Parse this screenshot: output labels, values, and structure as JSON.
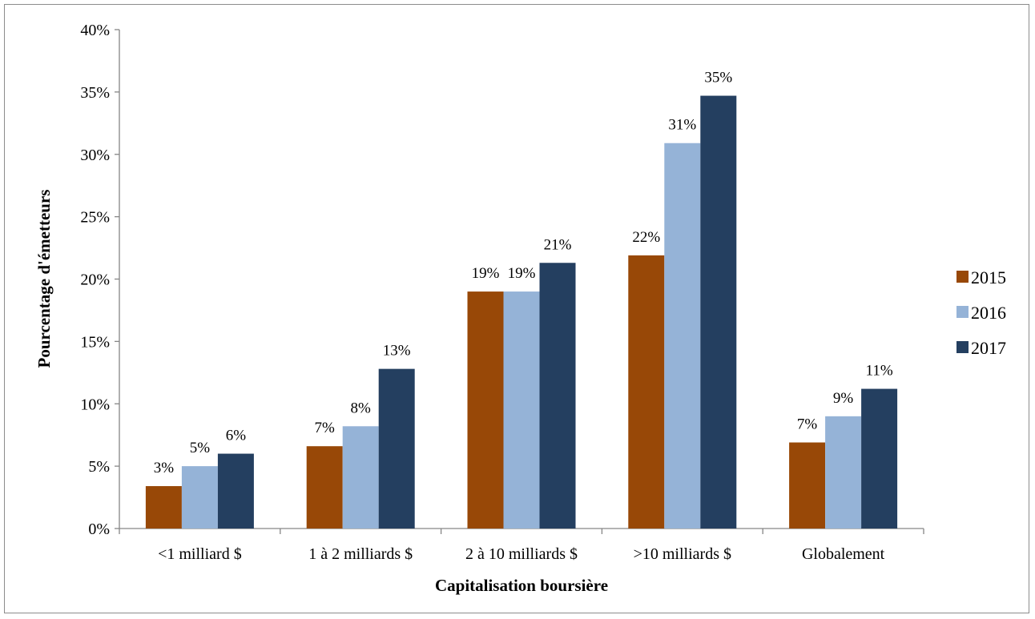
{
  "chart_data": {
    "type": "bar",
    "title": "",
    "xlabel": "Capitalisation boursière",
    "ylabel": "Pourcentage d'émetteurs",
    "ylim": [
      0,
      40
    ],
    "y_ticks": [
      "0%",
      "5%",
      "10%",
      "15%",
      "20%",
      "25%",
      "30%",
      "35%",
      "40%"
    ],
    "categories": [
      "<1 milliard $",
      "1 à 2 milliards $",
      "2 à 10 milliards $",
      ">10 milliards $",
      "Globalement"
    ],
    "series": [
      {
        "name": "2015",
        "color": "#984807",
        "values": [
          3.4,
          6.6,
          19.0,
          21.9,
          6.9
        ],
        "labels": [
          "3%",
          "7%",
          "19%",
          "22%",
          "7%"
        ]
      },
      {
        "name": "2016",
        "color": "#95b3d7",
        "values": [
          5.0,
          8.2,
          19.0,
          30.9,
          9.0
        ],
        "labels": [
          "5%",
          "8%",
          "19%",
          "31%",
          "9%"
        ]
      },
      {
        "name": "2017",
        "color": "#243f60",
        "values": [
          6.0,
          12.8,
          21.3,
          34.7,
          11.2
        ],
        "labels": [
          "6%",
          "13%",
          "21%",
          "35%",
          "11%"
        ]
      }
    ],
    "legend_position": "right",
    "grid": false
  }
}
